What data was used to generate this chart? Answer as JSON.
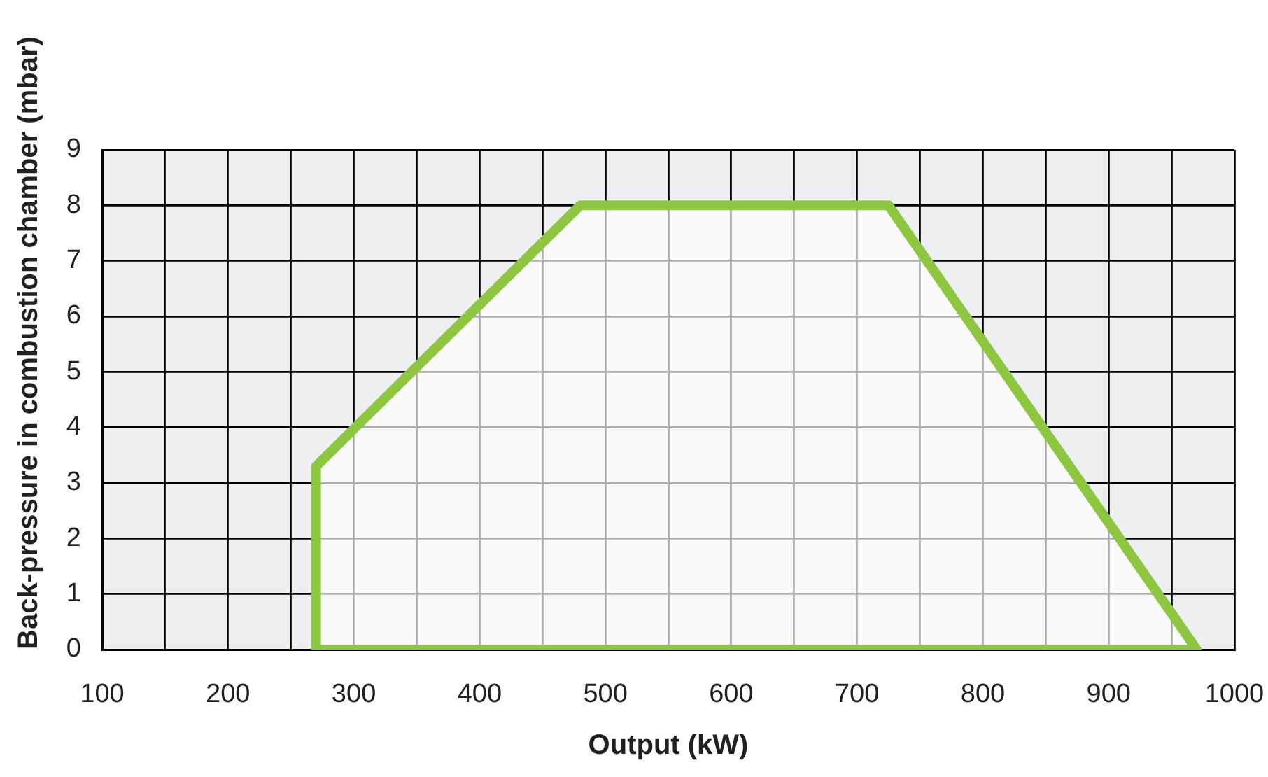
{
  "chart_data": {
    "type": "area",
    "xlabel": "Output (kW)",
    "ylabel": "Back-pressure in combustion chamber (mbar)",
    "x": [
      270,
      270,
      480,
      725,
      970,
      270
    ],
    "series": [
      {
        "color": "#8dc63f",
        "values": [
          0,
          3.3,
          8,
          8,
          0,
          0
        ]
      }
    ],
    "xlim": [
      100,
      1000
    ],
    "xticks": [
      100,
      {
        "value": 150,
        "label": null
      },
      200,
      {
        "value": 250,
        "label": null
      },
      300,
      {
        "value": 350,
        "label": null
      },
      400,
      {
        "value": 450,
        "label": null
      },
      500,
      {
        "value": 550,
        "label": null
      },
      600,
      {
        "value": 650,
        "label": null
      },
      700,
      {
        "value": 750,
        "label": null
      },
      800,
      {
        "value": 850,
        "label": null
      },
      900,
      {
        "value": 950,
        "label": null
      },
      1000
    ],
    "ylim": [
      0,
      9
    ],
    "yticks": [
      0,
      1,
      2,
      3,
      4,
      5,
      6,
      7,
      8,
      9
    ],
    "grid": true
  }
}
